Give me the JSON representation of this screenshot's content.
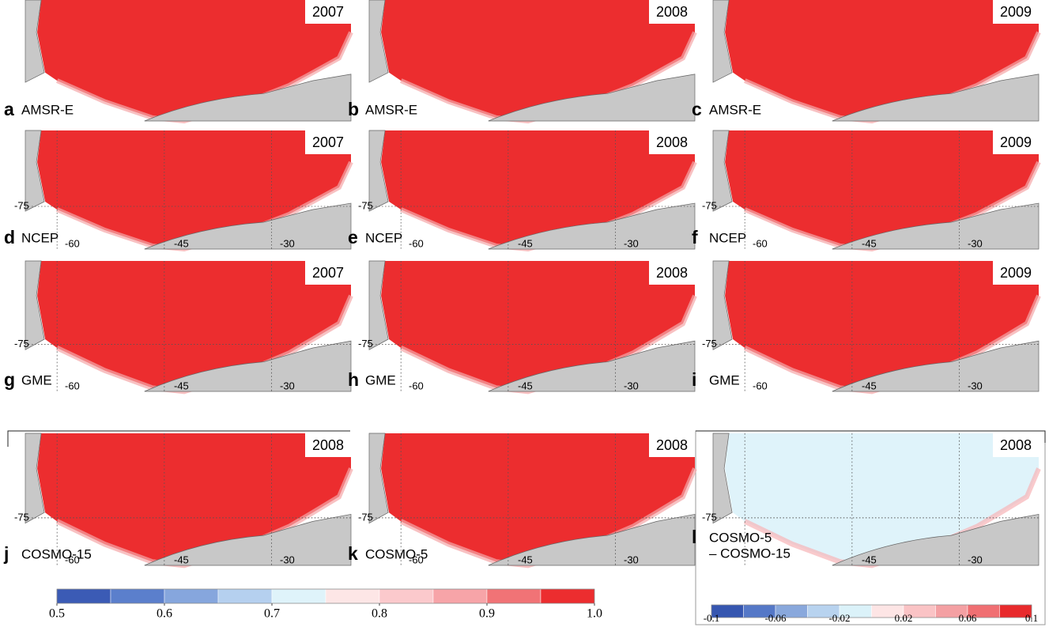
{
  "panels": [
    {
      "letter": "a",
      "label": "AMSR-E",
      "year": "2007",
      "grid_labels": []
    },
    {
      "letter": "b",
      "label": "AMSR-E",
      "year": "2008",
      "grid_labels": []
    },
    {
      "letter": "c",
      "label": "AMSR-E",
      "year": "2009",
      "grid_labels": []
    },
    {
      "letter": "d",
      "label": "NCEP",
      "year": "2007",
      "grid_labels": [
        "-75",
        "-60",
        "-45",
        "-30"
      ]
    },
    {
      "letter": "e",
      "label": "NCEP",
      "year": "2008",
      "grid_labels": [
        "-75",
        "-60",
        "-45",
        "-30"
      ]
    },
    {
      "letter": "f",
      "label": "NCEP",
      "year": "2009",
      "grid_labels": [
        "-75",
        "-60",
        "-45",
        "-30"
      ]
    },
    {
      "letter": "g",
      "label": "GME",
      "year": "2007",
      "grid_labels": [
        "-75",
        "-60",
        "-45",
        "-30"
      ]
    },
    {
      "letter": "h",
      "label": "GME",
      "year": "2008",
      "grid_labels": [
        "-75",
        "-60",
        "-45",
        "-30"
      ]
    },
    {
      "letter": "i",
      "label": "GME",
      "year": "2009",
      "grid_labels": [
        "-75",
        "-60",
        "-45",
        "-30"
      ]
    },
    {
      "letter": "j",
      "label": "COSMO-15",
      "year": "2008",
      "grid_labels": [
        "-75",
        "-60",
        "-45",
        "-30"
      ]
    },
    {
      "letter": "k",
      "label": "COSMO-5",
      "year": "2008",
      "grid_labels": [
        "-75",
        "-60",
        "-45",
        "-30"
      ]
    },
    {
      "letter": "l",
      "label": "COSMO-5",
      "label_line2": "– COSMO-15",
      "year": "2008",
      "grid_labels": [
        "-75",
        "-45",
        "-30"
      ],
      "difference": true
    }
  ],
  "colorbars": [
    {
      "lim": [
        0.5,
        1.0
      ],
      "colors": [
        "#3b5bb5",
        "#5b7fcc",
        "#86a6dd",
        "#b5d0ef",
        "#dff3fa",
        "#fde6e6",
        "#fbc9cc",
        "#f7a4a8",
        "#f17376",
        "#ec2d2f"
      ],
      "ticks": [
        0.5,
        0.6,
        0.7,
        0.8,
        0.9,
        {
          "value": 1,
          "label": "1.0"
        }
      ]
    },
    {
      "lim": [
        -0.1,
        0.1
      ],
      "colors": [
        "#3656b0",
        "#5578c7",
        "#89a8dc",
        "#b8d3ef",
        "#dbf2f9",
        "#fde5e5",
        "#fac3c5",
        "#f4a0a3",
        "#f06f72",
        "#e82a2c"
      ],
      "ticks": [
        -0.1,
        -0.06,
        -0.02,
        0.02,
        0.06,
        0.1
      ]
    }
  ]
}
